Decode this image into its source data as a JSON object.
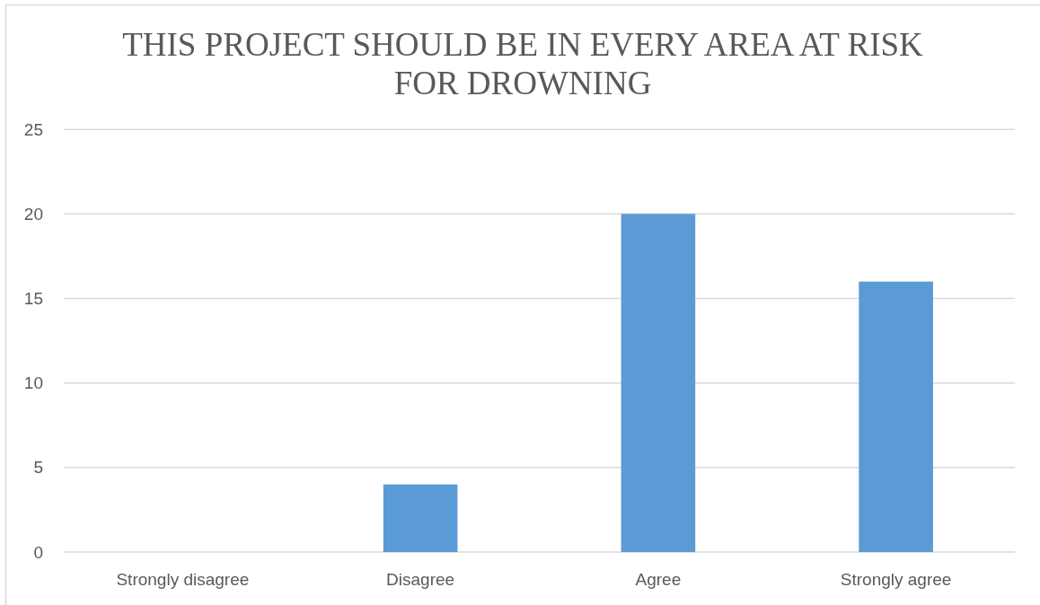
{
  "chart_data": {
    "type": "bar",
    "title": "THIS PROJECT SHOULD BE IN EVERY AREA AT RISK FOR DROWNING",
    "categories": [
      "Strongly disagree",
      "Disagree",
      "Agree",
      "Strongly agree"
    ],
    "values": [
      0,
      4,
      20,
      16
    ],
    "color": "#5b9bd5",
    "ylim": [
      0,
      25
    ],
    "yticks": [
      0,
      5,
      10,
      15,
      20,
      25
    ],
    "grid": "y"
  }
}
